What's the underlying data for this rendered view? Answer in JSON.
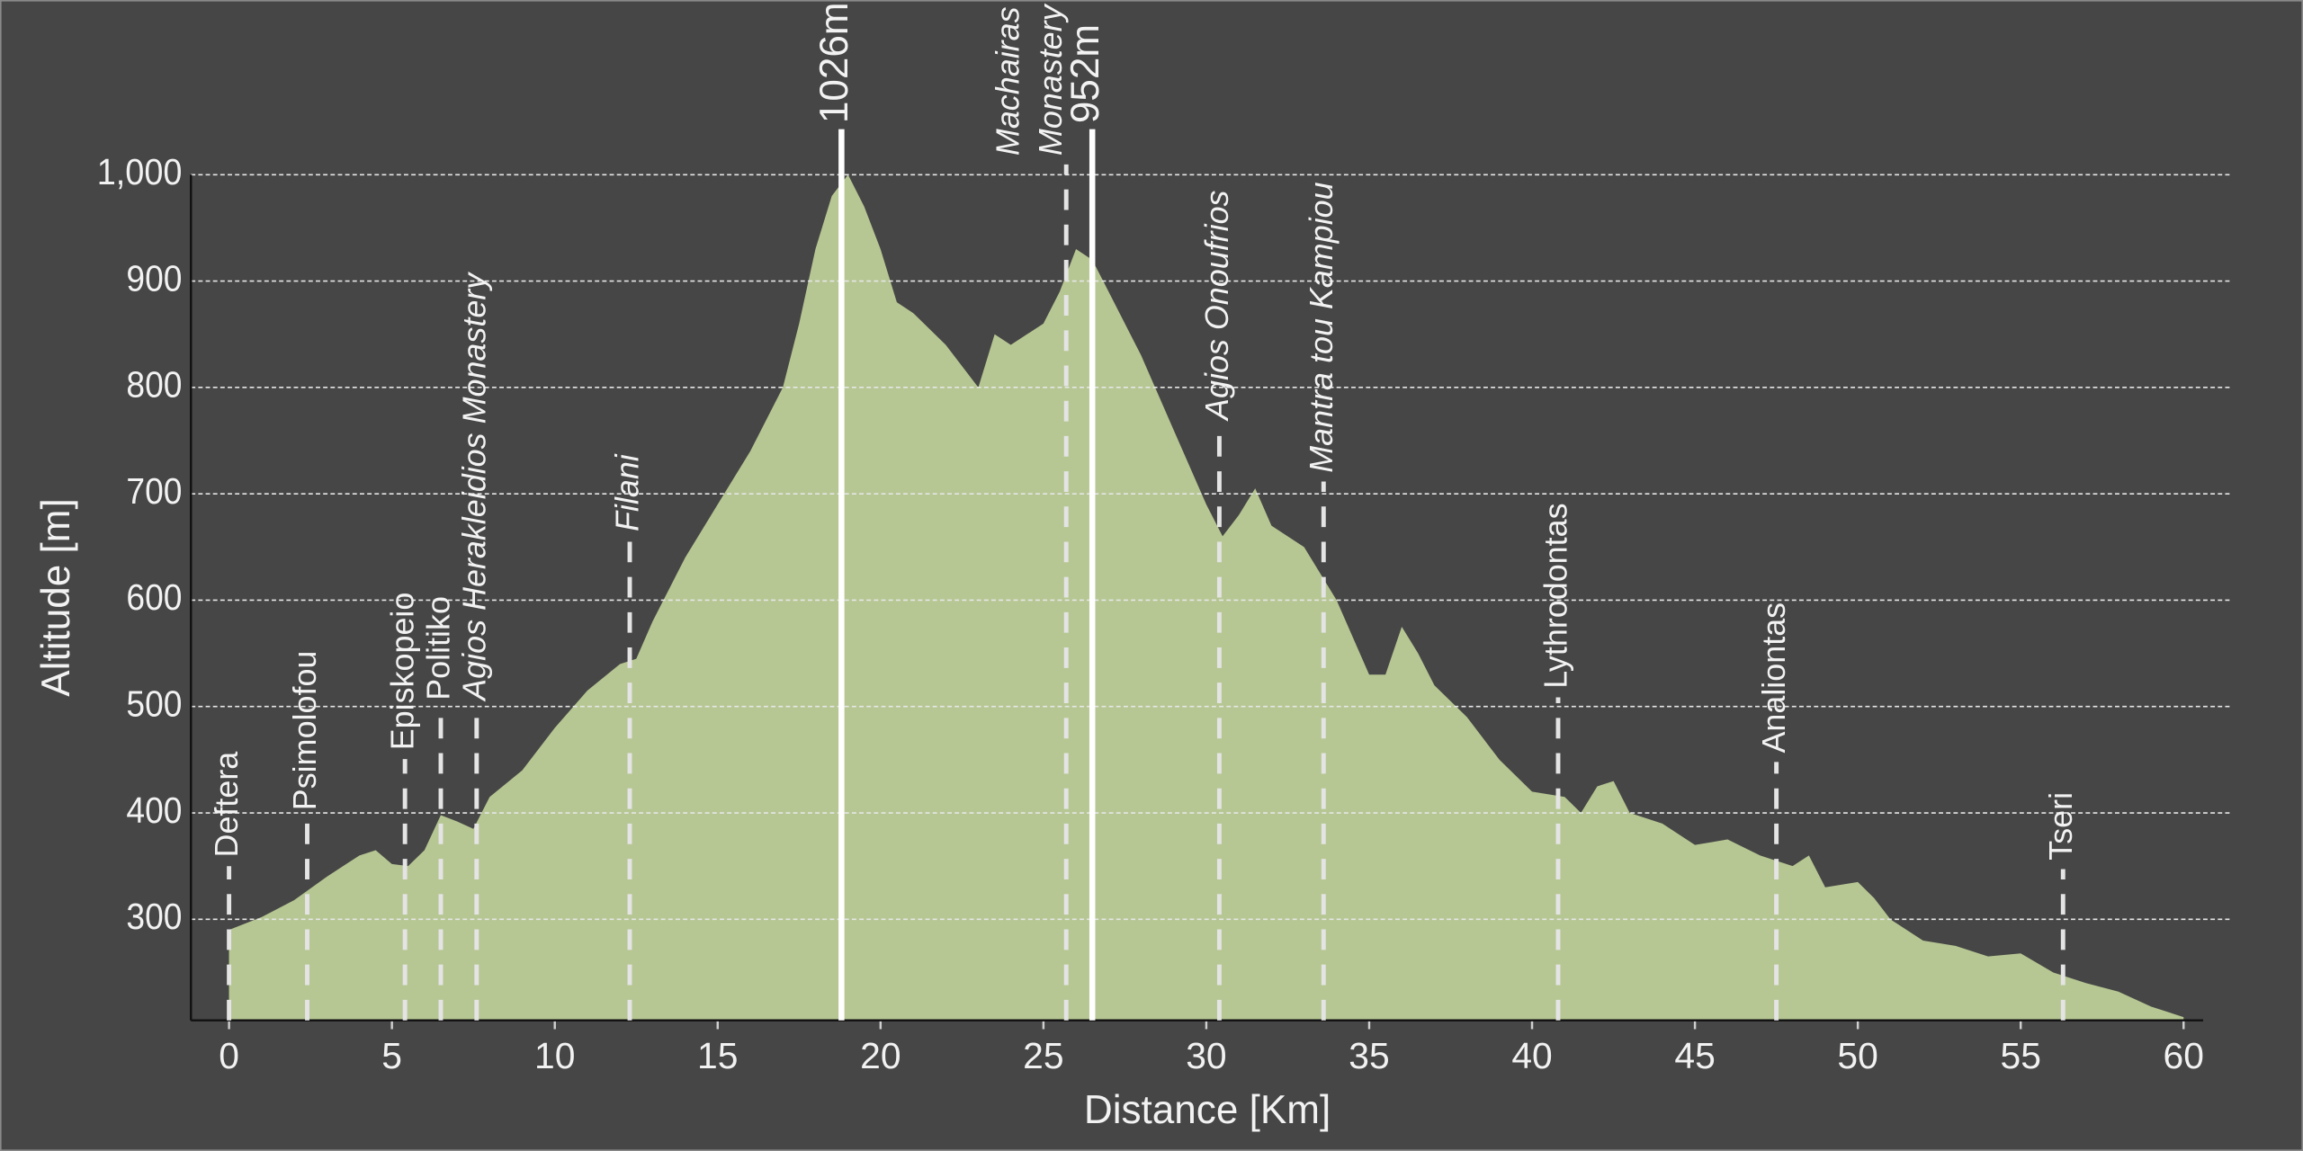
{
  "chart_data": {
    "type": "area",
    "xlabel": "Distance [Km]",
    "ylabel": "Altitude [m]",
    "color": "#b6c793",
    "xlim": [
      -1.17,
      60.6
    ],
    "ylim": [
      205,
      1000
    ],
    "xticks": [
      0,
      5,
      10,
      15,
      20,
      25,
      30,
      35,
      40,
      45,
      50,
      55,
      60
    ],
    "yticks": [
      300,
      400,
      500,
      600,
      700,
      800,
      900,
      {
        "value": 1000,
        "label": "1,000"
      }
    ],
    "grid": true,
    "x": [
      0,
      1,
      2,
      3,
      4,
      4.5,
      5,
      5.5,
      6,
      6.5,
      7,
      7.5,
      8,
      9,
      10,
      11,
      12,
      12.5,
      13,
      14,
      15,
      16,
      17,
      17.5,
      18,
      18.5,
      19,
      19.5,
      20,
      20.5,
      21,
      22,
      23,
      23.5,
      24,
      25,
      25.5,
      26,
      26.5,
      27,
      28,
      29,
      30,
      30.5,
      31,
      31.5,
      32,
      33,
      34,
      35,
      35.5,
      36,
      36.5,
      37,
      38,
      39,
      40,
      41,
      41.5,
      42,
      42.5,
      43,
      44,
      45,
      46,
      47,
      48,
      48.5,
      49,
      50,
      50.5,
      51,
      52,
      53,
      54,
      55,
      56,
      57,
      58,
      59,
      60
    ],
    "values": [
      290,
      302,
      318,
      340,
      360,
      365,
      352,
      350,
      365,
      398,
      392,
      385,
      415,
      440,
      480,
      515,
      540,
      545,
      580,
      640,
      690,
      740,
      800,
      860,
      930,
      980,
      1000,
      970,
      930,
      880,
      870,
      840,
      800,
      850,
      840,
      860,
      890,
      930,
      920,
      890,
      830,
      760,
      690,
      660,
      680,
      705,
      670,
      650,
      600,
      530,
      530,
      575,
      550,
      520,
      490,
      450,
      420,
      415,
      400,
      425,
      430,
      400,
      390,
      370,
      375,
      360,
      350,
      360,
      330,
      335,
      320,
      300,
      280,
      275,
      265,
      268,
      250,
      240,
      232,
      218,
      208
    ],
    "markers": [
      {
        "label": [
          "Deftera"
        ],
        "x": 0,
        "italic": false
      },
      {
        "label": [
          "Psimolofou"
        ],
        "x": 2.4,
        "italic": false
      },
      {
        "label": [
          "Episkopeio"
        ],
        "x": 5.4,
        "italic": false
      },
      {
        "label": [
          "Politiko"
        ],
        "x": 6.5,
        "italic": false
      },
      {
        "label": [
          "Agios Herakleidios Monastery"
        ],
        "x": 7.6,
        "italic": true
      },
      {
        "label": [
          "Filani"
        ],
        "x": 12.3,
        "italic": true
      },
      {
        "label": [
          "Machairas",
          "Monastery"
        ],
        "x": 25.7,
        "italic": true
      },
      {
        "label": [
          "Agios Onoufrios"
        ],
        "x": 30.4,
        "italic": true
      },
      {
        "label": [
          "Mantra tou Kampiou"
        ],
        "x": 33.6,
        "italic": true
      },
      {
        "label": [
          "Lythrodontas"
        ],
        "x": 40.8,
        "italic": false
      },
      {
        "label": [
          "Analiontas"
        ],
        "x": 47.5,
        "italic": false
      },
      {
        "label": [
          "Tseri"
        ],
        "x": 56.3,
        "italic": false
      }
    ],
    "peaks": [
      {
        "label": "1026m",
        "x": 18.8
      },
      {
        "label": "952m",
        "x": 26.5
      }
    ]
  }
}
